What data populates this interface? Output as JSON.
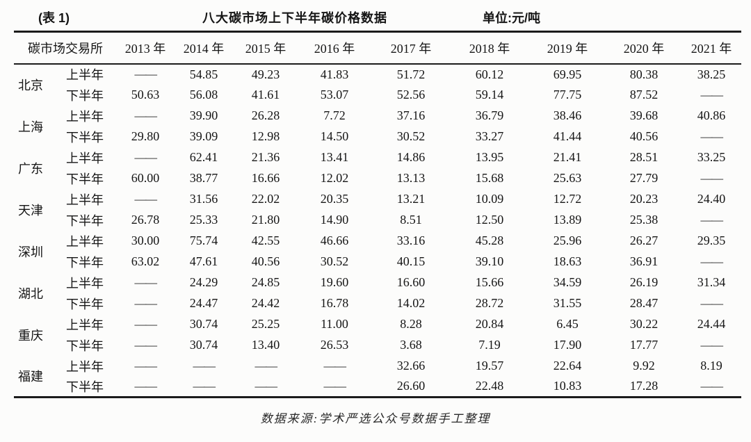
{
  "title": {
    "table_label": "(表 1)",
    "main": "八大碳市场上下半年碳价格数据",
    "unit": "单位:元/吨"
  },
  "chart_data": {
    "type": "table",
    "title": "八大碳市场上下半年碳价格数据",
    "unit": "元/吨",
    "corner_header": "碳市场交易所",
    "columns": [
      "2013 年",
      "2014 年",
      "2015 年",
      "2016 年",
      "2017 年",
      "2018 年",
      "2019 年",
      "2020 年",
      "2021 年"
    ],
    "empty_marker": "——",
    "markets": [
      {
        "name": "北京",
        "rows": [
          {
            "period": "上半年",
            "values": [
              "——",
              "54.85",
              "49.23",
              "41.83",
              "51.72",
              "60.12",
              "69.95",
              "80.38",
              "38.25"
            ]
          },
          {
            "period": "下半年",
            "values": [
              "50.63",
              "56.08",
              "41.61",
              "53.07",
              "52.56",
              "59.14",
              "77.75",
              "87.52",
              "——"
            ]
          }
        ]
      },
      {
        "name": "上海",
        "rows": [
          {
            "period": "上半年",
            "values": [
              "——",
              "39.90",
              "26.28",
              "7.72",
              "37.16",
              "36.79",
              "38.46",
              "39.68",
              "40.86"
            ]
          },
          {
            "period": "下半年",
            "values": [
              "29.80",
              "39.09",
              "12.98",
              "14.50",
              "30.52",
              "33.27",
              "41.44",
              "40.56",
              "——"
            ]
          }
        ]
      },
      {
        "name": "广东",
        "rows": [
          {
            "period": "上半年",
            "values": [
              "——",
              "62.41",
              "21.36",
              "13.41",
              "14.86",
              "13.95",
              "21.41",
              "28.51",
              "33.25"
            ]
          },
          {
            "period": "下半年",
            "values": [
              "60.00",
              "38.77",
              "16.66",
              "12.02",
              "13.13",
              "15.68",
              "25.63",
              "27.79",
              "——"
            ]
          }
        ]
      },
      {
        "name": "天津",
        "rows": [
          {
            "period": "上半年",
            "values": [
              "——",
              "31.56",
              "22.02",
              "20.35",
              "13.21",
              "10.09",
              "12.72",
              "20.23",
              "24.40"
            ]
          },
          {
            "period": "下半年",
            "values": [
              "26.78",
              "25.33",
              "21.80",
              "14.90",
              "8.51",
              "12.50",
              "13.89",
              "25.38",
              "——"
            ]
          }
        ]
      },
      {
        "name": "深圳",
        "rows": [
          {
            "period": "上半年",
            "values": [
              "30.00",
              "75.74",
              "42.55",
              "46.66",
              "33.16",
              "45.28",
              "25.96",
              "26.27",
              "29.35"
            ]
          },
          {
            "period": "下半年",
            "values": [
              "63.02",
              "47.61",
              "40.56",
              "30.52",
              "40.15",
              "39.10",
              "18.63",
              "36.91",
              "——"
            ]
          }
        ]
      },
      {
        "name": "湖北",
        "rows": [
          {
            "period": "上半年",
            "values": [
              "——",
              "24.29",
              "24.85",
              "19.60",
              "16.60",
              "15.66",
              "34.59",
              "26.19",
              "31.34"
            ]
          },
          {
            "period": "下半年",
            "values": [
              "——",
              "24.47",
              "24.42",
              "16.78",
              "14.02",
              "28.72",
              "31.55",
              "28.47",
              "——"
            ]
          }
        ]
      },
      {
        "name": "重庆",
        "rows": [
          {
            "period": "上半年",
            "values": [
              "——",
              "30.74",
              "25.25",
              "11.00",
              "8.28",
              "20.84",
              "6.45",
              "30.22",
              "24.44"
            ]
          },
          {
            "period": "下半年",
            "values": [
              "——",
              "30.74",
              "13.40",
              "26.53",
              "3.68",
              "7.19",
              "17.90",
              "17.77",
              "——"
            ]
          }
        ]
      },
      {
        "name": "福建",
        "rows": [
          {
            "period": "上半年",
            "values": [
              "——",
              "——",
              "——",
              "——",
              "32.66",
              "19.57",
              "22.64",
              "9.92",
              "8.19"
            ]
          },
          {
            "period": "下半年",
            "values": [
              "——",
              "——",
              "——",
              "——",
              "26.60",
              "22.48",
              "10.83",
              "17.28",
              "——"
            ]
          }
        ]
      }
    ]
  },
  "footer": {
    "source": "数据来源:学术严选公众号数据手工整理"
  }
}
